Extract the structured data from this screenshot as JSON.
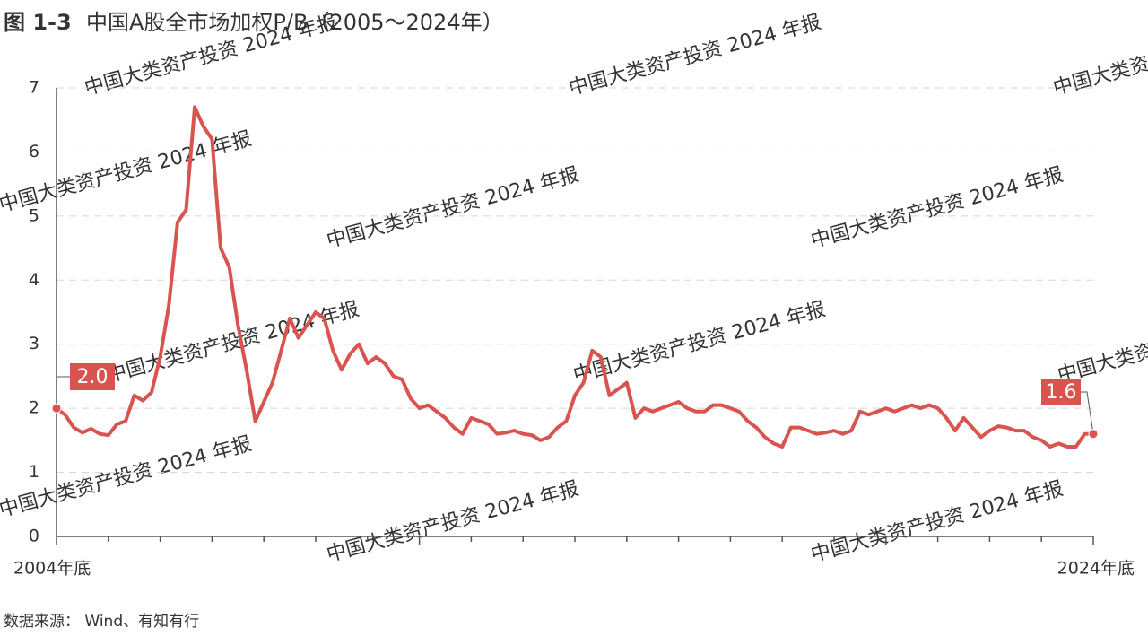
{
  "chart_data": {
    "type": "line",
    "figure_label": "图 1-3",
    "title": "中国A股全市场加权P/B（2005～2024年）",
    "source": "数据来源： Wind、有知有行",
    "watermark": "中国大类资产投资 2024 年报",
    "color": "#d9534f",
    "ylim": [
      0,
      7
    ],
    "yticks": [
      0,
      1,
      2,
      3,
      4,
      5,
      6,
      7
    ],
    "grid": true,
    "categories": [
      "2004年底",
      null,
      null,
      null,
      null,
      null,
      null,
      null,
      null,
      null,
      null,
      null,
      null,
      null,
      null,
      null,
      null,
      null,
      null,
      null,
      null,
      null,
      null,
      null,
      null,
      null,
      null,
      null,
      null,
      null,
      null,
      null,
      null,
      null,
      null,
      null,
      null,
      null,
      null,
      null,
      null,
      null,
      null,
      null,
      null,
      null,
      null,
      null,
      null,
      null,
      null,
      null,
      null,
      null,
      null,
      null,
      null,
      null,
      null,
      null,
      null,
      null,
      null,
      null,
      null,
      null,
      null,
      null,
      null,
      null,
      null,
      null,
      null,
      null,
      null,
      null,
      null,
      null,
      null,
      null,
      null,
      null,
      null,
      null,
      null,
      null,
      null,
      null,
      null,
      null,
      null,
      null,
      null,
      null,
      null,
      null,
      null,
      null,
      null,
      null,
      null,
      null,
      null,
      null,
      null,
      null,
      null,
      null,
      null,
      null,
      null,
      null,
      null,
      null,
      null,
      null,
      null,
      null,
      null,
      null,
      "2024年底"
    ],
    "values": [
      2.0,
      1.9,
      1.7,
      1.62,
      1.68,
      1.6,
      1.58,
      1.75,
      1.8,
      2.2,
      2.12,
      2.25,
      2.8,
      3.6,
      4.9,
      5.1,
      6.7,
      6.4,
      6.2,
      4.5,
      4.2,
      3.3,
      2.6,
      1.8,
      2.1,
      2.4,
      2.9,
      3.4,
      3.1,
      3.3,
      3.5,
      3.4,
      2.9,
      2.6,
      2.85,
      3.0,
      2.7,
      2.8,
      2.7,
      2.5,
      2.45,
      2.15,
      2.0,
      2.05,
      1.95,
      1.85,
      1.7,
      1.6,
      1.85,
      1.8,
      1.75,
      1.6,
      1.62,
      1.65,
      1.6,
      1.58,
      1.5,
      1.55,
      1.7,
      1.8,
      2.2,
      2.4,
      2.9,
      2.8,
      2.2,
      2.3,
      2.4,
      1.85,
      2.0,
      1.95,
      2.0,
      2.05,
      2.1,
      2.0,
      1.95,
      1.95,
      2.05,
      2.05,
      2.0,
      1.95,
      1.8,
      1.7,
      1.55,
      1.45,
      1.4,
      1.7,
      1.7,
      1.65,
      1.6,
      1.62,
      1.65,
      1.6,
      1.65,
      1.95,
      1.9,
      1.95,
      2.0,
      1.95,
      2.0,
      2.05,
      2.0,
      2.05,
      2.0,
      1.85,
      1.65,
      1.85,
      1.7,
      1.55,
      1.65,
      1.72,
      1.7,
      1.65,
      1.65,
      1.55,
      1.5,
      1.4,
      1.45,
      1.4,
      1.4,
      1.6,
      1.6
    ],
    "value_labels": [
      "2.0",
      null,
      null,
      null,
      null,
      null,
      null,
      null,
      null,
      null,
      null,
      null,
      null,
      null,
      null,
      null,
      null,
      null,
      null,
      null,
      null,
      null,
      null,
      null,
      null,
      null,
      null,
      null,
      null,
      null,
      null,
      null,
      null,
      null,
      null,
      null,
      null,
      null,
      null,
      null,
      null,
      null,
      null,
      null,
      null,
      null,
      null,
      null,
      null,
      null,
      null,
      null,
      null,
      null,
      null,
      null,
      null,
      null,
      null,
      null,
      null,
      null,
      null,
      null,
      null,
      null,
      null,
      null,
      null,
      null,
      null,
      null,
      null,
      null,
      null,
      null,
      null,
      null,
      null,
      null,
      null,
      null,
      null,
      null,
      null,
      null,
      null,
      null,
      null,
      null,
      null,
      null,
      null,
      null,
      null,
      null,
      null,
      null,
      null,
      null,
      null,
      null,
      null,
      null,
      null,
      null,
      null,
      null,
      null,
      null,
      null,
      null,
      null,
      null,
      null,
      null,
      null,
      null,
      null,
      null,
      "1.6"
    ]
  }
}
